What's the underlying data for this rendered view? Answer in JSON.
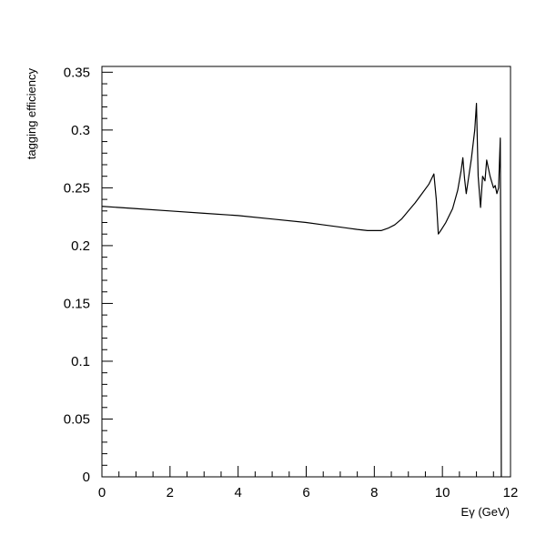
{
  "chart_data": {
    "type": "line",
    "title": "",
    "xlabel": "Eγ (GeV)",
    "ylabel": "tagging efficiency",
    "xlim": [
      0,
      12
    ],
    "ylim": [
      0,
      0.355
    ],
    "grid": false,
    "x_ticks": [
      0,
      2,
      4,
      6,
      8,
      10,
      12
    ],
    "x_tick_labels": [
      "0",
      "2",
      "4",
      "6",
      "8",
      "10",
      "12"
    ],
    "y_ticks": [
      0,
      0.05,
      0.1,
      0.15,
      0.2,
      0.25,
      0.3,
      0.35
    ],
    "y_tick_labels": [
      "0",
      "0.05",
      "0.1",
      "0.15",
      "0.2",
      "0.25",
      "0.3",
      "0.35"
    ],
    "series": [
      {
        "color": "#000000",
        "x": [
          0.0,
          0.5,
          1.0,
          2.0,
          3.0,
          4.0,
          5.0,
          6.0,
          6.5,
          7.0,
          7.5,
          7.8,
          8.0,
          8.2,
          8.4,
          8.6,
          8.8,
          9.0,
          9.2,
          9.4,
          9.6,
          9.75,
          9.82,
          9.88,
          9.95,
          10.1,
          10.3,
          10.45,
          10.55,
          10.6,
          10.65,
          10.7,
          10.75,
          10.85,
          10.95,
          11.0,
          11.05,
          11.12,
          11.18,
          11.25,
          11.3,
          11.4,
          11.5,
          11.55,
          11.6,
          11.65,
          11.7,
          11.72,
          11.73
        ],
        "y": [
          0.234,
          0.233,
          0.232,
          0.23,
          0.228,
          0.226,
          0.223,
          0.22,
          0.218,
          0.216,
          0.214,
          0.213,
          0.213,
          0.213,
          0.215,
          0.218,
          0.223,
          0.23,
          0.237,
          0.245,
          0.253,
          0.262,
          0.24,
          0.21,
          0.213,
          0.22,
          0.232,
          0.248,
          0.265,
          0.276,
          0.258,
          0.245,
          0.255,
          0.275,
          0.3,
          0.323,
          0.26,
          0.233,
          0.26,
          0.256,
          0.274,
          0.26,
          0.25,
          0.252,
          0.245,
          0.25,
          0.293,
          0.15,
          0.0
        ]
      }
    ]
  }
}
